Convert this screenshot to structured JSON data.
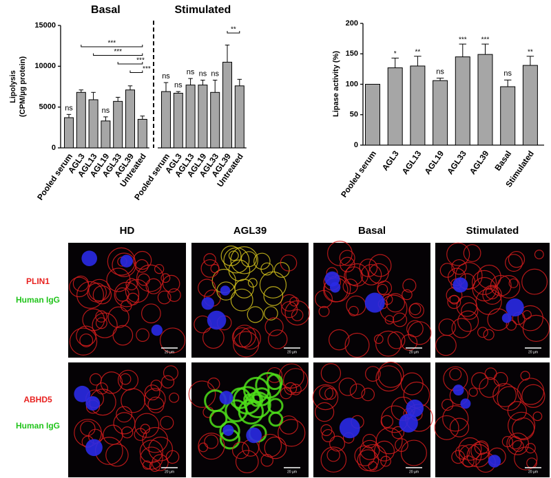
{
  "chart_data": [
    {
      "type": "bar",
      "y_label": [
        "Lipolysis",
        "(CPM/µg protein)"
      ],
      "ylim": [
        0,
        15000
      ],
      "yticks": [
        0,
        5000,
        10000,
        15000
      ],
      "color": "#a6a6a6",
      "groups": [
        {
          "name": "Basal",
          "categories": [
            "Pooled serum",
            "AGL3",
            "AGL13",
            "AGL19",
            "AGL33",
            "AGL39",
            "Untreated"
          ],
          "values": [
            3700,
            6800,
            5900,
            3300,
            5700,
            7100,
            3500
          ],
          "errors": [
            400,
            300,
            900,
            500,
            500,
            500,
            400
          ],
          "significance": [
            "ns",
            null,
            null,
            "ns",
            null,
            null,
            null
          ],
          "comparisons": [
            {
              "pair": [
                "AGL3",
                "Untreated"
              ],
              "label": "***"
            },
            {
              "pair": [
                "AGL13",
                "Untreated"
              ],
              "label": "***"
            },
            {
              "pair": [
                "AGL33",
                "Untreated"
              ],
              "label": "***"
            },
            {
              "pair": [
                "AGL39",
                "Untreated"
              ],
              "label": "***"
            }
          ]
        },
        {
          "name": "Stimulated",
          "categories": [
            "Pooled serum",
            "AGL3",
            "AGL13",
            "AGL19",
            "AGL33",
            "AGL39",
            "Untreated"
          ],
          "values": [
            6900,
            6700,
            7700,
            7700,
            6800,
            10500,
            7600
          ],
          "errors": [
            1100,
            200,
            800,
            600,
            1500,
            2100,
            800
          ],
          "significance": [
            "ns",
            "ns",
            "ns",
            "ns",
            "ns",
            null,
            null
          ],
          "comparisons": [
            {
              "pair": [
                "AGL39",
                "Untreated"
              ],
              "label": "**"
            }
          ]
        }
      ]
    },
    {
      "type": "bar",
      "y_label": "Lipase activity (%)",
      "ylim": [
        0,
        200
      ],
      "yticks": [
        0,
        50,
        100,
        150,
        200
      ],
      "color": "#a6a6a6",
      "categories": [
        "Pooled serum",
        "AGL3",
        "AGL13",
        "AGL19",
        "AGL33",
        "AGL39",
        "Basal",
        "Stimulated"
      ],
      "values": [
        100,
        127,
        130,
        106,
        145,
        149,
        96,
        131
      ],
      "errors": [
        0,
        16,
        16,
        4,
        21,
        17,
        11,
        15
      ],
      "significance": [
        null,
        "*",
        "**",
        "ns",
        "***",
        "***",
        "ns",
        "**"
      ]
    }
  ],
  "images": {
    "columns": [
      "HD",
      "AGL39",
      "Basal",
      "Stimulated"
    ],
    "rows": [
      {
        "stain": "PLIN1",
        "counter": "Human IgG"
      },
      {
        "stain": "ABHD5",
        "counter": "Human IgG"
      }
    ],
    "scale_bar": "20 µm"
  }
}
